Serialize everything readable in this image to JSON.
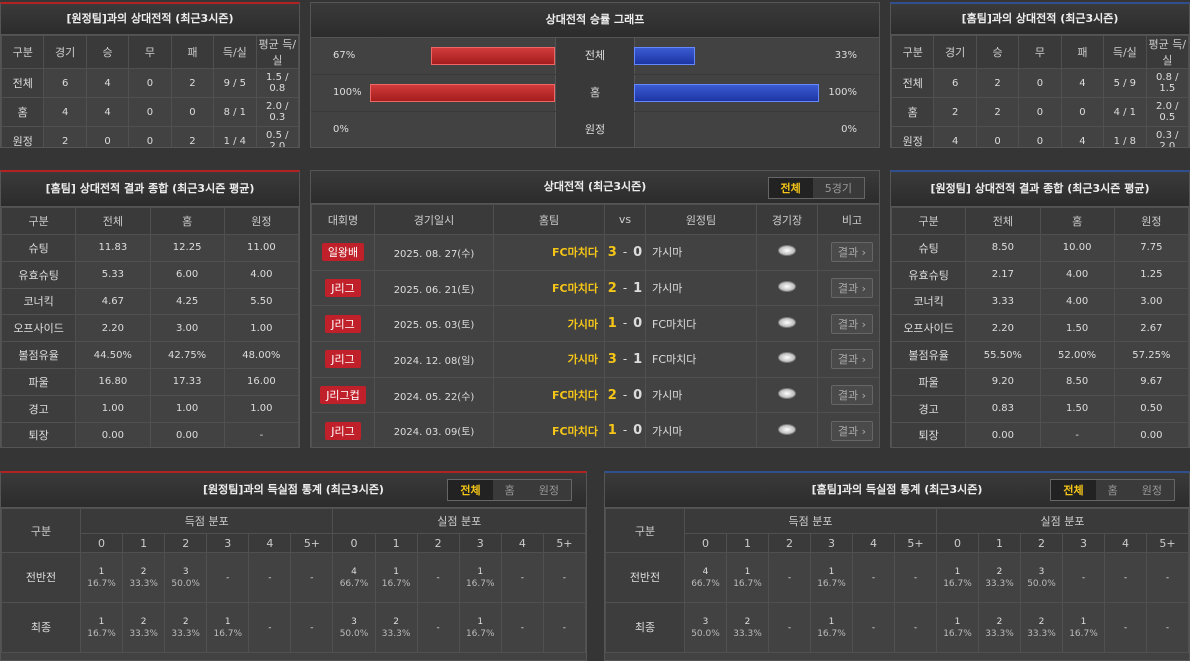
{
  "away_h2h": {
    "title": "[원정팀]과의 상대전적 (최근3시즌)",
    "headers": [
      "구분",
      "경기",
      "승",
      "무",
      "패",
      "득/실",
      "평균 득/실"
    ],
    "rows": [
      [
        "전체",
        "6",
        "4",
        "0",
        "2",
        "9 / 5",
        "1.5 / 0.8"
      ],
      [
        "홈",
        "4",
        "4",
        "0",
        "0",
        "8 / 1",
        "2.0 / 0.3"
      ],
      [
        "원정",
        "2",
        "0",
        "0",
        "2",
        "1 / 4",
        "0.5 / 2.0"
      ]
    ]
  },
  "win_graph": {
    "title": "상대전적 승률 그래프",
    "rows": [
      {
        "label": "전체",
        "home": {
          "value": 67,
          "label": "67%"
        },
        "away": {
          "value": 33,
          "label": "33%"
        }
      },
      {
        "label": "홈",
        "home": {
          "value": 100,
          "label": "100%"
        },
        "away": {
          "value": 100,
          "label": "100%"
        }
      },
      {
        "label": "원정",
        "home": {
          "value": 0,
          "label": "0%"
        },
        "away": {
          "value": 0,
          "label": "0%"
        }
      }
    ]
  },
  "home_h2h": {
    "title": "[홈팀]과의 상대전적 (최근3시즌)",
    "headers": [
      "구분",
      "경기",
      "승",
      "무",
      "패",
      "득/실",
      "평균 득/실"
    ],
    "rows": [
      [
        "전체",
        "6",
        "2",
        "0",
        "4",
        "5 / 9",
        "0.8 / 1.5"
      ],
      [
        "홈",
        "2",
        "2",
        "0",
        "0",
        "4 / 1",
        "2.0 / 0.5"
      ],
      [
        "원정",
        "4",
        "0",
        "0",
        "4",
        "1 / 8",
        "0.3 / 2.0"
      ]
    ]
  },
  "home_summary": {
    "title": "[홈팀] 상대전적 결과 종합 (최근3시즌 평균)",
    "headers": [
      "구분",
      "전체",
      "홈",
      "원정"
    ],
    "rows": [
      [
        "슈팅",
        "11.83",
        "12.25",
        "11.00"
      ],
      [
        "유효슈팅",
        "5.33",
        "6.00",
        "4.00"
      ],
      [
        "코너킥",
        "4.67",
        "4.25",
        "5.50"
      ],
      [
        "오프사이드",
        "2.20",
        "3.00",
        "1.00"
      ],
      [
        "볼점유율",
        "44.50%",
        "42.75%",
        "48.00%"
      ],
      [
        "파울",
        "16.80",
        "17.33",
        "16.00"
      ],
      [
        "경고",
        "1.00",
        "1.00",
        "1.00"
      ],
      [
        "퇴장",
        "0.00",
        "0.00",
        "-"
      ]
    ]
  },
  "matches": {
    "title": "상대전적 (최근3시즌)",
    "tabs": [
      "전체",
      "5경기"
    ],
    "headers": [
      "대회명",
      "경기일시",
      "홈팀",
      "vs",
      "원정팀",
      "경기장",
      "비고"
    ],
    "score_separator": "-",
    "result_button": "결과",
    "rows": [
      {
        "competition": "일왕배",
        "date": "2025. 08. 27(수)",
        "home": "FC마치다",
        "home_goals": "3",
        "away_goals": "0",
        "away": "가시마"
      },
      {
        "competition": "J리그",
        "date": "2025. 06. 21(토)",
        "home": "FC마치다",
        "home_goals": "2",
        "away_goals": "1",
        "away": "가시마"
      },
      {
        "competition": "J리그",
        "date": "2025. 05. 03(토)",
        "home": "가시마",
        "home_goals": "1",
        "away_goals": "0",
        "away": "FC마치다"
      },
      {
        "competition": "J리그",
        "date": "2024. 12. 08(일)",
        "home": "가시마",
        "home_goals": "3",
        "away_goals": "1",
        "away": "FC마치다"
      },
      {
        "competition": "J리그컵",
        "date": "2024. 05. 22(수)",
        "home": "FC마치다",
        "home_goals": "2",
        "away_goals": "0",
        "away": "가시마"
      },
      {
        "competition": "J리그",
        "date": "2024. 03. 09(토)",
        "home": "FC마치다",
        "home_goals": "1",
        "away_goals": "0",
        "away": "가시마"
      }
    ]
  },
  "away_summary": {
    "title": "[원정팀] 상대전적 결과 종합 (최근3시즌 평균)",
    "headers": [
      "구분",
      "전체",
      "홈",
      "원정"
    ],
    "rows": [
      [
        "슈팅",
        "8.50",
        "10.00",
        "7.75"
      ],
      [
        "유효슈팅",
        "2.17",
        "4.00",
        "1.25"
      ],
      [
        "코너킥",
        "3.33",
        "4.00",
        "3.00"
      ],
      [
        "오프사이드",
        "2.20",
        "1.50",
        "2.67"
      ],
      [
        "볼점유율",
        "55.50%",
        "52.00%",
        "57.25%"
      ],
      [
        "파울",
        "9.20",
        "8.50",
        "9.67"
      ],
      [
        "경고",
        "0.83",
        "1.50",
        "0.50"
      ],
      [
        "퇴장",
        "0.00",
        "-",
        "0.00"
      ]
    ]
  },
  "away_goal_stats": {
    "title": "[원정팀]과의 득실점 통계 (최근3시즌)",
    "tabs": [
      "전체",
      "홈",
      "원정"
    ],
    "row_header": "구분",
    "groups": [
      "득점 분포",
      "실점 분포"
    ],
    "buckets": [
      "0",
      "1",
      "2",
      "3",
      "4",
      "5+"
    ],
    "rows": [
      {
        "label": "전반전",
        "scored": [
          [
            "1",
            "16.7%"
          ],
          [
            "2",
            "33.3%"
          ],
          [
            "3",
            "50.0%"
          ],
          [
            "-"
          ],
          [
            "-"
          ],
          [
            "-"
          ]
        ],
        "conceded": [
          [
            "4",
            "66.7%"
          ],
          [
            "1",
            "16.7%"
          ],
          [
            "-"
          ],
          [
            "1",
            "16.7%"
          ],
          [
            "-"
          ],
          [
            "-"
          ]
        ]
      },
      {
        "label": "최종",
        "scored": [
          [
            "1",
            "16.7%"
          ],
          [
            "2",
            "33.3%"
          ],
          [
            "2",
            "33.3%"
          ],
          [
            "1",
            "16.7%"
          ],
          [
            "-"
          ],
          [
            "-"
          ]
        ],
        "conceded": [
          [
            "3",
            "50.0%"
          ],
          [
            "2",
            "33.3%"
          ],
          [
            "-"
          ],
          [
            "1",
            "16.7%"
          ],
          [
            "-"
          ],
          [
            "-"
          ]
        ]
      }
    ]
  },
  "home_goal_stats": {
    "title": "[홈팀]과의 득실점 통계 (최근3시즌)",
    "tabs": [
      "전체",
      "홈",
      "원정"
    ],
    "row_header": "구분",
    "groups": [
      "득점 분포",
      "실점 분포"
    ],
    "buckets": [
      "0",
      "1",
      "2",
      "3",
      "4",
      "5+"
    ],
    "rows": [
      {
        "label": "전반전",
        "scored": [
          [
            "4",
            "66.7%"
          ],
          [
            "1",
            "16.7%"
          ],
          [
            "-"
          ],
          [
            "1",
            "16.7%"
          ],
          [
            "-"
          ],
          [
            "-"
          ]
        ],
        "conceded": [
          [
            "1",
            "16.7%"
          ],
          [
            "2",
            "33.3%"
          ],
          [
            "3",
            "50.0%"
          ],
          [
            "-"
          ],
          [
            "-"
          ],
          [
            "-"
          ]
        ]
      },
      {
        "label": "최종",
        "scored": [
          [
            "3",
            "50.0%"
          ],
          [
            "2",
            "33.3%"
          ],
          [
            "-"
          ],
          [
            "1",
            "16.7%"
          ],
          [
            "-"
          ],
          [
            "-"
          ]
        ],
        "conceded": [
          [
            "1",
            "16.7%"
          ],
          [
            "2",
            "33.3%"
          ],
          [
            "2",
            "33.3%"
          ],
          [
            "1",
            "16.7%"
          ],
          [
            "-"
          ],
          [
            "-"
          ]
        ]
      }
    ]
  }
}
